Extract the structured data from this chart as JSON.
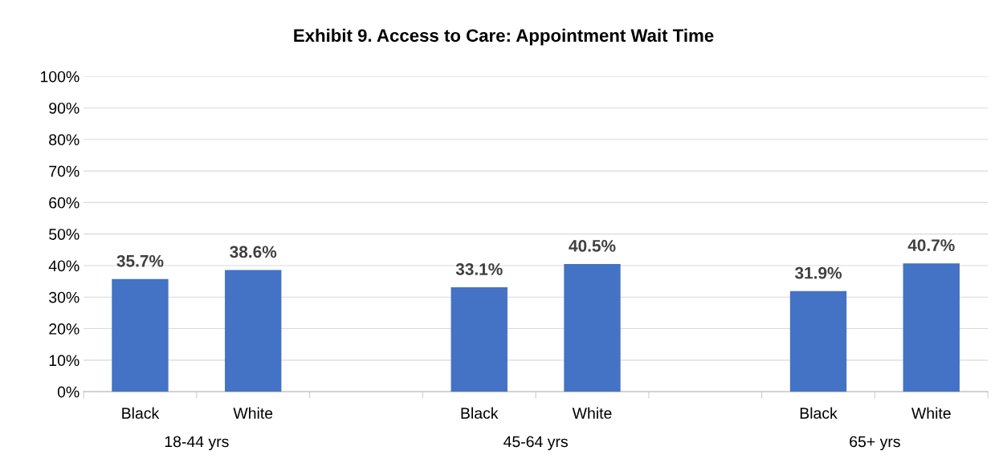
{
  "chart_data": {
    "type": "bar",
    "title": "Exhibit 9. Access to Care: Appointment Wait Time",
    "categories": [
      "Black",
      "White",
      null,
      "Black",
      "White",
      null,
      "Black",
      "White"
    ],
    "values": [
      35.7,
      38.6,
      null,
      33.1,
      40.5,
      null,
      31.9,
      40.7
    ],
    "value_labels": [
      "35.7%",
      "38.6%",
      null,
      "33.1%",
      "40.5%",
      null,
      "31.9%",
      "40.7%"
    ],
    "color": "#4472c4",
    "ylim": [
      0,
      100
    ],
    "yticks": [
      {
        "value": 0,
        "label": "0%"
      },
      {
        "value": 10,
        "label": "10%"
      },
      {
        "value": 20,
        "label": "20%"
      },
      {
        "value": 30,
        "label": "30%"
      },
      {
        "value": 40,
        "label": "40%"
      },
      {
        "value": 50,
        "label": "50%"
      },
      {
        "value": 60,
        "label": "60%"
      },
      {
        "value": 70,
        "label": "70%"
      },
      {
        "value": 80,
        "label": "80%"
      },
      {
        "value": 90,
        "label": "90%"
      },
      {
        "value": 100,
        "label": "100%"
      }
    ],
    "grid": "y",
    "legend": false,
    "annotations": [
      "18-44 yrs",
      "45-64 yrs",
      "65+ yrs"
    ]
  }
}
